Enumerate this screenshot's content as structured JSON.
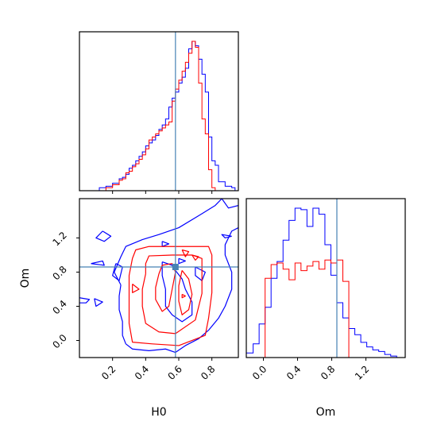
{
  "chart_data": {
    "type": "corner",
    "parameters": [
      "H0",
      "Om"
    ],
    "truth": {
      "H0": 0.58,
      "Om": 0.86
    },
    "truth_color": "#4682b4",
    "series_colors": [
      "#0000ff",
      "#ff0000"
    ],
    "panels": [
      {
        "id": "hist-H0",
        "type": "histogram",
        "xlim": [
          0.0,
          0.96
        ],
        "xticks": [
          0.2,
          0.4,
          0.6,
          0.8
        ],
        "xtick_labels_shown": false,
        "yticks_shown": false,
        "bin_edges": [
          0.0,
          0.12,
          0.14,
          0.16,
          0.18,
          0.2,
          0.22,
          0.24,
          0.26,
          0.28,
          0.3,
          0.32,
          0.34,
          0.36,
          0.38,
          0.4,
          0.42,
          0.44,
          0.46,
          0.48,
          0.5,
          0.52,
          0.54,
          0.56,
          0.58,
          0.6,
          0.62,
          0.64,
          0.66,
          0.68,
          0.7,
          0.72,
          0.74,
          0.76,
          0.78,
          0.8,
          0.82,
          0.84,
          0.86,
          0.88,
          0.9,
          0.92,
          0.94,
          0.96
        ],
        "series": [
          {
            "color": "#0000ff",
            "counts": [
              0.0,
              0.02,
              0.02,
              0.03,
              0.03,
              0.05,
              0.05,
              0.08,
              0.09,
              0.11,
              0.15,
              0.17,
              0.2,
              0.23,
              0.26,
              0.3,
              0.32,
              0.34,
              0.37,
              0.41,
              0.44,
              0.48,
              0.56,
              0.62,
              0.66,
              0.72,
              0.76,
              0.82,
              0.95,
              1.0,
              0.97,
              0.88,
              0.78,
              0.66,
              0.36,
              0.2,
              0.17,
              0.06,
              0.06,
              0.03,
              0.03,
              0.02,
              0.0
            ]
          },
          {
            "color": "#ff0000",
            "counts": [
              0.0,
              0.0,
              0.0,
              0.02,
              0.02,
              0.04,
              0.04,
              0.07,
              0.08,
              0.12,
              0.13,
              0.16,
              0.18,
              0.21,
              0.24,
              0.28,
              0.34,
              0.36,
              0.38,
              0.4,
              0.42,
              0.44,
              0.46,
              0.6,
              0.68,
              0.74,
              0.8,
              0.86,
              0.92,
              1.0,
              0.96,
              0.72,
              0.48,
              0.38,
              0.14,
              0.02,
              0.0,
              0.0,
              0.0,
              0.0,
              0.0,
              0.0,
              0.0
            ]
          }
        ]
      },
      {
        "id": "contour-H0-Om",
        "type": "contour",
        "xlim": [
          0.0,
          0.96
        ],
        "ylim": [
          -0.2,
          1.66
        ],
        "xticks": [
          0.2,
          0.4,
          0.6,
          0.8
        ],
        "xtick_labels": [
          "0.2",
          "0.4",
          "0.6",
          "0.8"
        ],
        "yticks": [
          0.0,
          0.4,
          0.8,
          1.2
        ],
        "ytick_labels": [
          "0.0",
          "0.4",
          "0.8",
          "1.2"
        ],
        "xlabel": "H0",
        "ylabel": "Om",
        "series": [
          {
            "color": "#0000ff",
            "contours": [
              [
                [
                  0.14,
                  1.28
                ],
                [
                  0.19,
                  1.22
                ],
                [
                  0.15,
                  1.16
                ],
                [
                  0.1,
                  1.2
                ],
                [
                  0.14,
                  1.28
                ]
              ],
              [
                [
                  0.07,
                  0.9
                ],
                [
                  0.14,
                  0.93
                ],
                [
                  0.15,
                  0.88
                ],
                [
                  0.07,
                  0.9
                ]
              ],
              [
                [
                  0.0,
                  0.5
                ],
                [
                  0.06,
                  0.48
                ],
                [
                  0.04,
                  0.44
                ],
                [
                  0.0,
                  0.44
                ]
              ],
              [
                [
                  0.09,
                  0.49
                ],
                [
                  0.14,
                  0.45
                ],
                [
                  0.1,
                  0.4
                ],
                [
                  0.09,
                  0.49
                ]
              ],
              [
                [
                  0.25,
                  0.65
                ],
                [
                  0.21,
                  0.8
                ],
                [
                  0.25,
                  0.98
                ],
                [
                  0.28,
                  1.1
                ],
                [
                  0.38,
                  1.18
                ],
                [
                  0.48,
                  1.24
                ],
                [
                  0.6,
                  1.32
                ],
                [
                  0.72,
                  1.46
                ],
                [
                  0.82,
                  1.58
                ],
                [
                  0.86,
                  1.66
                ]
              ],
              [
                [
                  0.96,
                  1.58
                ],
                [
                  0.9,
                  1.55
                ],
                [
                  0.86,
                  1.66
                ]
              ],
              [
                [
                  0.92,
                  1.22
                ],
                [
                  0.86,
                  1.24
                ],
                [
                  0.88,
                  1.2
                ],
                [
                  0.92,
                  1.22
                ]
              ],
              [
                [
                  0.96,
                  1.32
                ],
                [
                  0.92,
                  1.28
                ],
                [
                  0.88,
                  1.12
                ],
                [
                  0.88,
                  1.0
                ],
                [
                  0.92,
                  0.8
                ],
                [
                  0.92,
                  0.6
                ],
                [
                  0.88,
                  0.4
                ],
                [
                  0.84,
                  0.26
                ],
                [
                  0.78,
                  0.12
                ],
                [
                  0.72,
                  0.02
                ],
                [
                  0.64,
                  -0.06
                ],
                [
                  0.58,
                  -0.14
                ],
                [
                  0.52,
                  -0.1
                ],
                [
                  0.42,
                  -0.12
                ],
                [
                  0.32,
                  -0.1
                ],
                [
                  0.28,
                  -0.04
                ]
              ],
              [
                [
                  0.28,
                  -0.04
                ],
                [
                  0.26,
                  0.06
                ],
                [
                  0.26,
                  0.22
                ],
                [
                  0.24,
                  0.36
                ],
                [
                  0.24,
                  0.52
                ],
                [
                  0.25,
                  0.65
                ]
              ],
              [
                [
                  0.5,
                  0.92
                ],
                [
                  0.56,
                  0.88
                ],
                [
                  0.58,
                  0.82
                ],
                [
                  0.62,
                  0.72
                ],
                [
                  0.64,
                  0.6
                ],
                [
                  0.68,
                  0.45
                ],
                [
                  0.68,
                  0.3
                ],
                [
                  0.62,
                  0.22
                ],
                [
                  0.56,
                  0.3
                ],
                [
                  0.52,
                  0.4
                ],
                [
                  0.52,
                  0.6
                ],
                [
                  0.5,
                  0.76
                ],
                [
                  0.5,
                  0.92
                ]
              ],
              [
                [
                  0.7,
                  0.86
                ],
                [
                  0.76,
                  0.8
                ],
                [
                  0.74,
                  0.7
                ],
                [
                  0.7,
                  0.76
                ],
                [
                  0.7,
                  0.86
                ]
              ],
              [
                [
                  0.22,
                  0.9
                ],
                [
                  0.26,
                  0.86
                ],
                [
                  0.24,
                  0.7
                ],
                [
                  0.2,
                  0.76
                ],
                [
                  0.22,
                  0.9
                ]
              ],
              [
                [
                  0.5,
                  1.16
                ],
                [
                  0.54,
                  1.13
                ],
                [
                  0.5,
                  1.1
                ],
                [
                  0.5,
                  1.16
                ]
              ],
              [
                [
                  0.6,
                  0.96
                ],
                [
                  0.64,
                  0.93
                ],
                [
                  0.6,
                  0.9
                ],
                [
                  0.6,
                  0.96
                ]
              ]
            ]
          },
          {
            "color": "#ff0000",
            "contours": [
              [
                [
                  0.3,
                  0.56
                ],
                [
                  0.3,
                  0.76
                ],
                [
                  0.32,
                  0.96
                ],
                [
                  0.34,
                  1.06
                ],
                [
                  0.42,
                  1.1
                ],
                [
                  0.54,
                  1.1
                ],
                [
                  0.66,
                  1.1
                ],
                [
                  0.78,
                  1.1
                ],
                [
                  0.8,
                  1.0
                ],
                [
                  0.8,
                  0.8
                ],
                [
                  0.8,
                  0.56
                ],
                [
                  0.78,
                  0.26
                ],
                [
                  0.76,
                  0.06
                ],
                [
                  0.6,
                  -0.06
                ],
                [
                  0.44,
                  -0.04
                ],
                [
                  0.32,
                  -0.02
                ],
                [
                  0.3,
                  0.2
                ],
                [
                  0.3,
                  0.4
                ],
                [
                  0.3,
                  0.56
                ]
              ],
              [
                [
                  0.4,
                  0.78
                ],
                [
                  0.4,
                  0.9
                ],
                [
                  0.42,
                  0.99
                ],
                [
                  0.56,
                  1.0
                ],
                [
                  0.68,
                  1.0
                ],
                [
                  0.74,
                  0.96
                ],
                [
                  0.74,
                  0.8
                ],
                [
                  0.74,
                  0.55
                ],
                [
                  0.7,
                  0.24
                ],
                [
                  0.58,
                  0.08
                ],
                [
                  0.48,
                  0.1
                ],
                [
                  0.4,
                  0.2
                ],
                [
                  0.38,
                  0.4
                ],
                [
                  0.38,
                  0.6
                ],
                [
                  0.4,
                  0.78
                ]
              ],
              [
                [
                  0.48,
                  0.78
                ],
                [
                  0.5,
                  0.88
                ],
                [
                  0.56,
                  0.9
                ],
                [
                  0.58,
                  0.8
                ],
                [
                  0.56,
                  0.6
                ],
                [
                  0.54,
                  0.4
                ],
                [
                  0.5,
                  0.34
                ],
                [
                  0.46,
                  0.48
                ],
                [
                  0.46,
                  0.62
                ],
                [
                  0.48,
                  0.78
                ]
              ],
              [
                [
                  0.62,
                  0.82
                ],
                [
                  0.66,
                  0.72
                ],
                [
                  0.68,
                  0.54
                ],
                [
                  0.66,
                  0.36
                ],
                [
                  0.62,
                  0.3
                ],
                [
                  0.6,
                  0.46
                ],
                [
                  0.6,
                  0.64
                ],
                [
                  0.62,
                  0.82
                ]
              ],
              [
                [
                  0.62,
                  1.06
                ],
                [
                  0.66,
                  1.04
                ],
                [
                  0.64,
                  0.98
                ],
                [
                  0.62,
                  1.06
                ]
              ],
              [
                [
                  0.68,
                  1.0
                ],
                [
                  0.72,
                  0.98
                ],
                [
                  0.7,
                  0.94
                ],
                [
                  0.68,
                  1.0
                ]
              ],
              [
                [
                  0.32,
                  0.66
                ],
                [
                  0.36,
                  0.6
                ],
                [
                  0.32,
                  0.56
                ],
                [
                  0.32,
                  0.66
                ]
              ],
              [
                [
                  0.62,
                  0.54
                ],
                [
                  0.64,
                  0.52
                ],
                [
                  0.62,
                  0.5
                ],
                [
                  0.62,
                  0.54
                ]
              ]
            ]
          }
        ]
      },
      {
        "id": "hist-Om",
        "type": "histogram",
        "xlim": [
          -0.2,
          1.66
        ],
        "xticks": [
          0.0,
          0.4,
          0.8,
          1.2
        ],
        "xtick_labels": [
          "0.0",
          "0.4",
          "0.8",
          "1.2"
        ],
        "yticks_shown": false,
        "xlabel": "Om",
        "bin_edges": [
          -0.2,
          -0.12,
          -0.05,
          0.02,
          0.09,
          0.16,
          0.23,
          0.3,
          0.37,
          0.44,
          0.51,
          0.58,
          0.65,
          0.72,
          0.79,
          0.86,
          0.93,
          1.0,
          1.07,
          1.14,
          1.21,
          1.28,
          1.35,
          1.42,
          1.49,
          1.56,
          1.66
        ],
        "series": [
          {
            "color": "#0000ff",
            "counts": [
              0.03,
              0.09,
              0.22,
              0.33,
              0.52,
              0.63,
              0.77,
              0.9,
              0.98,
              0.97,
              0.86,
              0.98,
              0.94,
              0.74,
              0.54,
              0.36,
              0.26,
              0.19,
              0.15,
              0.1,
              0.07,
              0.05,
              0.04,
              0.02,
              0.01,
              0.0
            ]
          },
          {
            "color": "#ff0000",
            "counts": [
              0.0,
              0.0,
              0.0,
              0.52,
              0.61,
              0.62,
              0.58,
              0.51,
              0.62,
              0.57,
              0.6,
              0.63,
              0.58,
              0.64,
              0.62,
              0.64,
              0.5,
              0.0,
              0.0,
              0.0,
              0.0,
              0.0,
              0.0,
              0.0,
              0.0,
              0.0
            ]
          }
        ]
      }
    ]
  }
}
